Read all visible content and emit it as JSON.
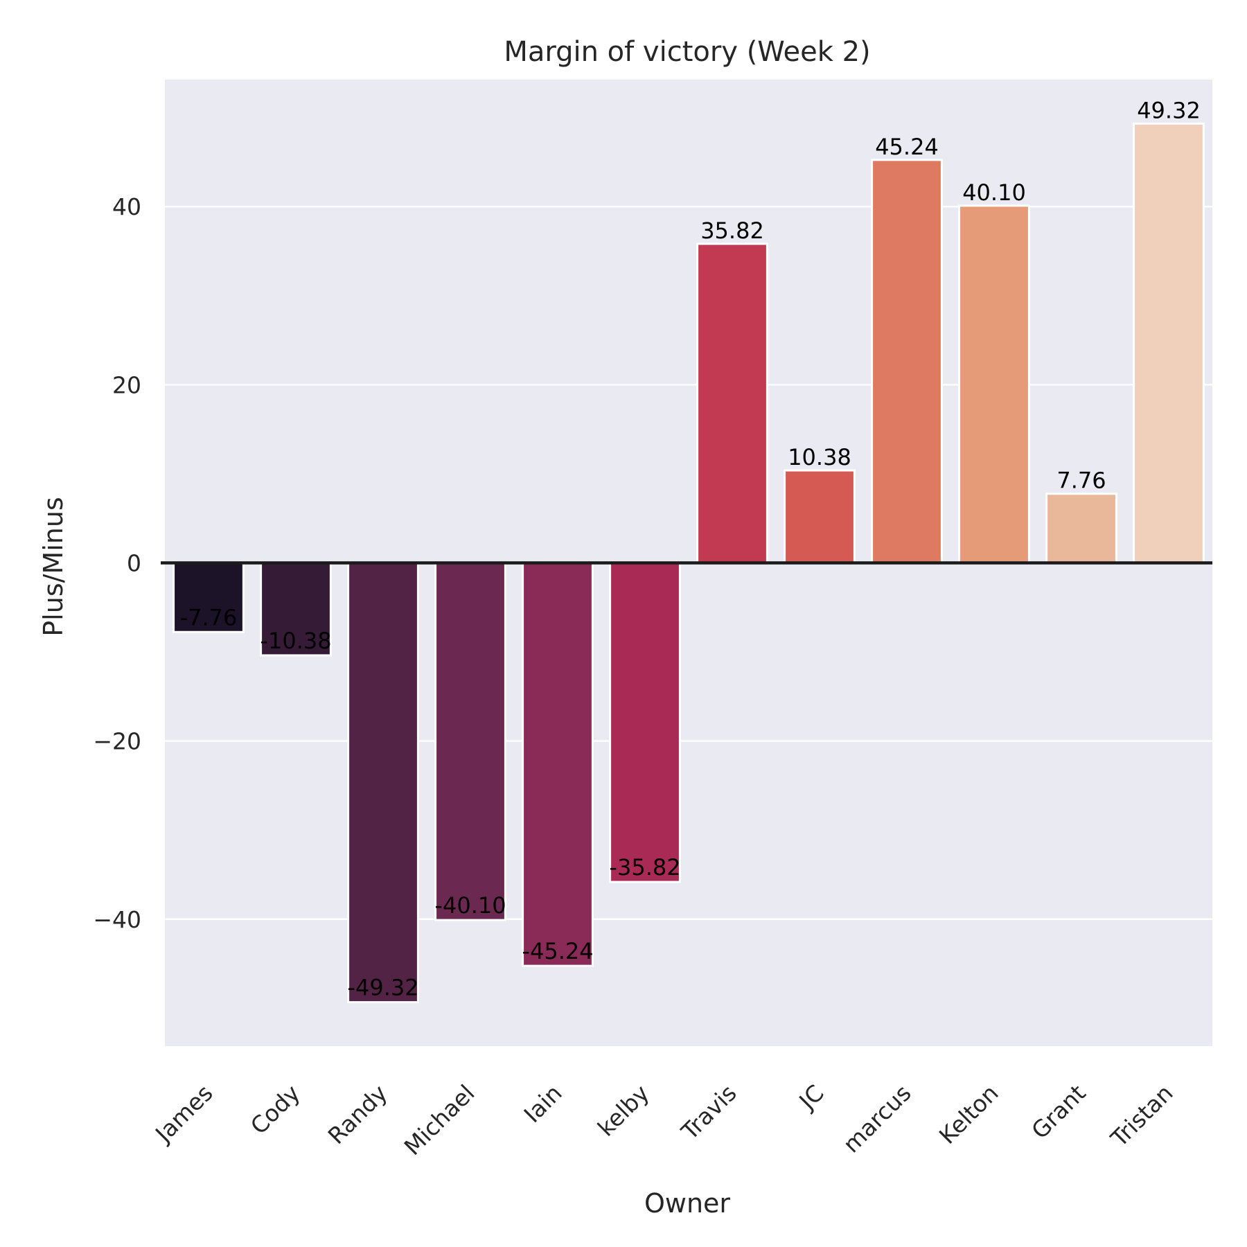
{
  "chart_data": {
    "type": "bar",
    "title": "Margin of victory (Week 2)",
    "xlabel": "Owner",
    "ylabel": "Plus/Minus",
    "categories": [
      "James",
      "Cody",
      "Randy",
      "Michael",
      "Iain",
      "kelby",
      "Travis",
      "JC",
      "marcus",
      "Kelton",
      "Grant",
      "Tristan"
    ],
    "values": [
      -7.76,
      -10.38,
      -49.32,
      -40.1,
      -45.24,
      -35.82,
      35.82,
      10.38,
      45.24,
      40.1,
      7.76,
      49.32
    ],
    "data_labels": [
      "-7.76",
      "-10.38",
      "-49.32",
      "-40.10",
      "-45.24",
      "-35.82",
      "35.82",
      "10.38",
      "45.24",
      "40.10",
      "7.76",
      "49.32"
    ],
    "colors": [
      "#1c1329",
      "#361b37",
      "#532345",
      "#6b2850",
      "#892a57",
      "#a92a55",
      "#c23a52",
      "#d65a54",
      "#df7a62",
      "#e59a78",
      "#e9b79a",
      "#f0d0bb"
    ],
    "ylim": [
      -54.25,
      54.25
    ],
    "yticks": [
      -40,
      -20,
      0,
      20,
      40
    ],
    "ytick_labels": [
      "−40",
      "−20",
      "0",
      "20",
      "40"
    ],
    "grid": true,
    "zero_line": true,
    "background": "#eaeaf2",
    "zero_line_color": "#1a1a1a"
  }
}
